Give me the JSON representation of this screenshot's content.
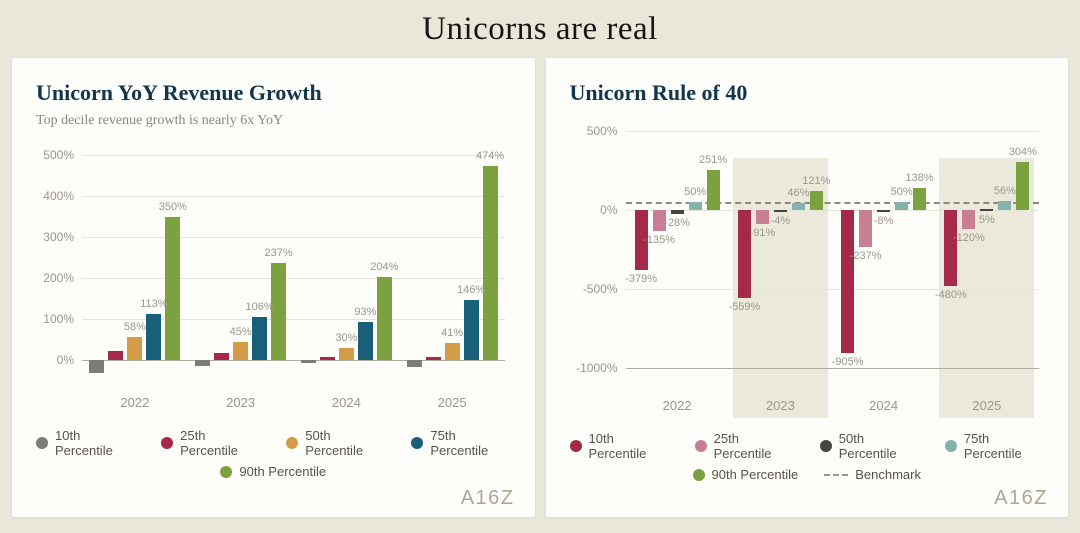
{
  "header": {
    "title": "Unicorns are real"
  },
  "branding": {
    "logo_text": "A16Z"
  },
  "colors": {
    "page_bg": "#e9e6da",
    "card_bg": "#fdfdf9",
    "title_navy": "#14354e",
    "band_beige": "#ebe8dc",
    "axis_text": "#9b978c"
  },
  "chart_data": [
    {
      "type": "bar",
      "title": "Unicorn YoY Revenue Growth",
      "subtitle": "Top decile revenue growth is nearly 6x YoY",
      "categories": [
        "2022",
        "2023",
        "2024",
        "2025"
      ],
      "series": [
        {
          "name": "10th Percentile",
          "color": "#7d7c78",
          "values": [
            -30,
            -14,
            -6,
            -16
          ],
          "labels": [
            null,
            null,
            null,
            null
          ]
        },
        {
          "name": "25th Percentile",
          "color": "#a52948",
          "values": [
            22,
            18,
            7,
            9
          ],
          "labels": [
            null,
            null,
            null,
            null
          ]
        },
        {
          "name": "50th Percentile",
          "color": "#d69b47",
          "values": [
            58,
            45,
            30,
            41
          ],
          "labels": [
            "58%",
            "45%",
            "30%",
            "41%"
          ]
        },
        {
          "name": "75th Percentile",
          "color": "#1a5f7a",
          "values": [
            113,
            106,
            93,
            146
          ],
          "labels": [
            "113%",
            "106%",
            "93%",
            "146%"
          ]
        },
        {
          "name": "90th Percentile",
          "color": "#7ba23f",
          "values": [
            350,
            237,
            204,
            474
          ],
          "labels": [
            "350%",
            "237%",
            "204%",
            "474%"
          ]
        }
      ],
      "ylim": [
        -65,
        510
      ],
      "yticks": [
        500,
        400,
        300,
        200,
        100,
        0
      ],
      "strong_ticks": [
        0
      ],
      "ytick_suffix": "%",
      "benchmark": null,
      "bands": [],
      "legend_rows": [
        4,
        1
      ]
    },
    {
      "type": "bar",
      "title": "Unicorn Rule of 40",
      "subtitle": "",
      "categories": [
        "2022",
        "2023",
        "2024",
        "2025"
      ],
      "series": [
        {
          "name": "10th Percentile",
          "color": "#a52948",
          "values": [
            -379,
            -559,
            -905,
            -480
          ],
          "labels": [
            "-379%",
            "-559%",
            "-905%",
            "-480%"
          ]
        },
        {
          "name": "25th Percentile",
          "color": "#c87e95",
          "values": [
            -135,
            -91,
            -237,
            -120
          ],
          "labels": [
            "-135%",
            "-91%",
            "-237%",
            "-120%"
          ]
        },
        {
          "name": "50th Percentile",
          "color": "#45463f",
          "values": [
            -28,
            -4,
            -8,
            5
          ],
          "labels": [
            "-28%",
            "-4%",
            "-8%",
            "5%"
          ]
        },
        {
          "name": "75th Percentile",
          "color": "#85b2aa",
          "values": [
            50,
            46,
            50,
            56
          ],
          "labels": [
            "50%",
            "46%",
            "50%",
            "56%"
          ]
        },
        {
          "name": "90th Percentile",
          "color": "#7ba23f",
          "values": [
            251,
            121,
            138,
            304
          ],
          "labels": [
            "251%",
            "121%",
            "138%",
            "304%"
          ]
        }
      ],
      "ylim": [
        -1140,
        530
      ],
      "yticks": [
        500,
        0,
        -500,
        -1000
      ],
      "strong_ticks": [
        -1000
      ],
      "ytick_suffix": "%",
      "benchmark": 40,
      "benchmark_label": "Benchmark",
      "bands": [
        "2023",
        "2025"
      ],
      "band_top": 330,
      "legend_rows": [
        4,
        2
      ]
    }
  ]
}
